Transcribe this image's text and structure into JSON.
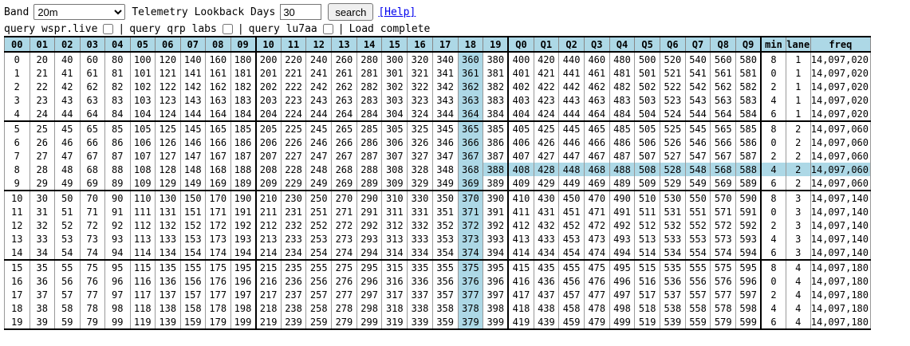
{
  "controls": {
    "band_label": "Band",
    "band_value": "20m",
    "days_label": "Telemetry Lookback Days",
    "days_value": "30",
    "search_label": "search",
    "help_label": "[Help]"
  },
  "queries": {
    "q1": "query wspr.live",
    "q2": "query qrp labs",
    "q3": "query lu7aa",
    "separator": "|",
    "status": "Load complete"
  },
  "colors": {
    "highlight": "#add8e6",
    "header": "#add8e6",
    "link": "#0000ee"
  },
  "grid": {
    "headers": [
      "00",
      "01",
      "02",
      "03",
      "04",
      "05",
      "06",
      "07",
      "08",
      "09",
      "10",
      "11",
      "12",
      "13",
      "14",
      "15",
      "16",
      "17",
      "18",
      "19",
      "Q0",
      "Q1",
      "Q2",
      "Q3",
      "Q4",
      "Q5",
      "Q6",
      "Q7",
      "Q8",
      "Q9",
      "min",
      "lane",
      "freq"
    ],
    "highlight_column": "18",
    "highlight_row": "8",
    "rows": [
      [
        "0",
        "20",
        "40",
        "60",
        "80",
        "100",
        "120",
        "140",
        "160",
        "180",
        "200",
        "220",
        "240",
        "260",
        "280",
        "300",
        "320",
        "340",
        "360",
        "380",
        "400",
        "420",
        "440",
        "460",
        "480",
        "500",
        "520",
        "540",
        "560",
        "580",
        "8",
        "1",
        "14,097,020"
      ],
      [
        "1",
        "21",
        "41",
        "61",
        "81",
        "101",
        "121",
        "141",
        "161",
        "181",
        "201",
        "221",
        "241",
        "261",
        "281",
        "301",
        "321",
        "341",
        "361",
        "381",
        "401",
        "421",
        "441",
        "461",
        "481",
        "501",
        "521",
        "541",
        "561",
        "581",
        "0",
        "1",
        "14,097,020"
      ],
      [
        "2",
        "22",
        "42",
        "62",
        "82",
        "102",
        "122",
        "142",
        "162",
        "182",
        "202",
        "222",
        "242",
        "262",
        "282",
        "302",
        "322",
        "342",
        "362",
        "382",
        "402",
        "422",
        "442",
        "462",
        "482",
        "502",
        "522",
        "542",
        "562",
        "582",
        "2",
        "1",
        "14,097,020"
      ],
      [
        "3",
        "23",
        "43",
        "63",
        "83",
        "103",
        "123",
        "143",
        "163",
        "183",
        "203",
        "223",
        "243",
        "263",
        "283",
        "303",
        "323",
        "343",
        "363",
        "383",
        "403",
        "423",
        "443",
        "463",
        "483",
        "503",
        "523",
        "543",
        "563",
        "583",
        "4",
        "1",
        "14,097,020"
      ],
      [
        "4",
        "24",
        "44",
        "64",
        "84",
        "104",
        "124",
        "144",
        "164",
        "184",
        "204",
        "224",
        "244",
        "264",
        "284",
        "304",
        "324",
        "344",
        "364",
        "384",
        "404",
        "424",
        "444",
        "464",
        "484",
        "504",
        "524",
        "544",
        "564",
        "584",
        "6",
        "1",
        "14,097,020"
      ],
      [
        "5",
        "25",
        "45",
        "65",
        "85",
        "105",
        "125",
        "145",
        "165",
        "185",
        "205",
        "225",
        "245",
        "265",
        "285",
        "305",
        "325",
        "345",
        "365",
        "385",
        "405",
        "425",
        "445",
        "465",
        "485",
        "505",
        "525",
        "545",
        "565",
        "585",
        "8",
        "2",
        "14,097,060"
      ],
      [
        "6",
        "26",
        "46",
        "66",
        "86",
        "106",
        "126",
        "146",
        "166",
        "186",
        "206",
        "226",
        "246",
        "266",
        "286",
        "306",
        "326",
        "346",
        "366",
        "386",
        "406",
        "426",
        "446",
        "466",
        "486",
        "506",
        "526",
        "546",
        "566",
        "586",
        "0",
        "2",
        "14,097,060"
      ],
      [
        "7",
        "27",
        "47",
        "67",
        "87",
        "107",
        "127",
        "147",
        "167",
        "187",
        "207",
        "227",
        "247",
        "267",
        "287",
        "307",
        "327",
        "347",
        "367",
        "387",
        "407",
        "427",
        "447",
        "467",
        "487",
        "507",
        "527",
        "547",
        "567",
        "587",
        "2",
        "2",
        "14,097,060"
      ],
      [
        "8",
        "28",
        "48",
        "68",
        "88",
        "108",
        "128",
        "148",
        "168",
        "188",
        "208",
        "228",
        "248",
        "268",
        "288",
        "308",
        "328",
        "348",
        "368",
        "388",
        "408",
        "428",
        "448",
        "468",
        "488",
        "508",
        "528",
        "548",
        "568",
        "588",
        "4",
        "2",
        "14,097,060"
      ],
      [
        "9",
        "29",
        "49",
        "69",
        "89",
        "109",
        "129",
        "149",
        "169",
        "189",
        "209",
        "229",
        "249",
        "269",
        "289",
        "309",
        "329",
        "349",
        "369",
        "389",
        "409",
        "429",
        "449",
        "469",
        "489",
        "509",
        "529",
        "549",
        "569",
        "589",
        "6",
        "2",
        "14,097,060"
      ],
      [
        "10",
        "30",
        "50",
        "70",
        "90",
        "110",
        "130",
        "150",
        "170",
        "190",
        "210",
        "230",
        "250",
        "270",
        "290",
        "310",
        "330",
        "350",
        "370",
        "390",
        "410",
        "430",
        "450",
        "470",
        "490",
        "510",
        "530",
        "550",
        "570",
        "590",
        "8",
        "3",
        "14,097,140"
      ],
      [
        "11",
        "31",
        "51",
        "71",
        "91",
        "111",
        "131",
        "151",
        "171",
        "191",
        "211",
        "231",
        "251",
        "271",
        "291",
        "311",
        "331",
        "351",
        "371",
        "391",
        "411",
        "431",
        "451",
        "471",
        "491",
        "511",
        "531",
        "551",
        "571",
        "591",
        "0",
        "3",
        "14,097,140"
      ],
      [
        "12",
        "32",
        "52",
        "72",
        "92",
        "112",
        "132",
        "152",
        "172",
        "192",
        "212",
        "232",
        "252",
        "272",
        "292",
        "312",
        "332",
        "352",
        "372",
        "392",
        "412",
        "432",
        "452",
        "472",
        "492",
        "512",
        "532",
        "552",
        "572",
        "592",
        "2",
        "3",
        "14,097,140"
      ],
      [
        "13",
        "33",
        "53",
        "73",
        "93",
        "113",
        "133",
        "153",
        "173",
        "193",
        "213",
        "233",
        "253",
        "273",
        "293",
        "313",
        "333",
        "353",
        "373",
        "393",
        "413",
        "433",
        "453",
        "473",
        "493",
        "513",
        "533",
        "553",
        "573",
        "593",
        "4",
        "3",
        "14,097,140"
      ],
      [
        "14",
        "34",
        "54",
        "74",
        "94",
        "114",
        "134",
        "154",
        "174",
        "194",
        "214",
        "234",
        "254",
        "274",
        "294",
        "314",
        "334",
        "354",
        "374",
        "394",
        "414",
        "434",
        "454",
        "474",
        "494",
        "514",
        "534",
        "554",
        "574",
        "594",
        "6",
        "3",
        "14,097,140"
      ],
      [
        "15",
        "35",
        "55",
        "75",
        "95",
        "115",
        "135",
        "155",
        "175",
        "195",
        "215",
        "235",
        "255",
        "275",
        "295",
        "315",
        "335",
        "355",
        "375",
        "395",
        "415",
        "435",
        "455",
        "475",
        "495",
        "515",
        "535",
        "555",
        "575",
        "595",
        "8",
        "4",
        "14,097,180"
      ],
      [
        "16",
        "36",
        "56",
        "76",
        "96",
        "116",
        "136",
        "156",
        "176",
        "196",
        "216",
        "236",
        "256",
        "276",
        "296",
        "316",
        "336",
        "356",
        "376",
        "396",
        "416",
        "436",
        "456",
        "476",
        "496",
        "516",
        "536",
        "556",
        "576",
        "596",
        "0",
        "4",
        "14,097,180"
      ],
      [
        "17",
        "37",
        "57",
        "77",
        "97",
        "117",
        "137",
        "157",
        "177",
        "197",
        "217",
        "237",
        "257",
        "277",
        "297",
        "317",
        "337",
        "357",
        "377",
        "397",
        "417",
        "437",
        "457",
        "477",
        "497",
        "517",
        "537",
        "557",
        "577",
        "597",
        "2",
        "4",
        "14,097,180"
      ],
      [
        "18",
        "38",
        "58",
        "78",
        "98",
        "118",
        "138",
        "158",
        "178",
        "198",
        "218",
        "238",
        "258",
        "278",
        "298",
        "318",
        "338",
        "358",
        "378",
        "398",
        "418",
        "438",
        "458",
        "478",
        "498",
        "518",
        "538",
        "558",
        "578",
        "598",
        "4",
        "4",
        "14,097,180"
      ],
      [
        "19",
        "39",
        "59",
        "79",
        "99",
        "119",
        "139",
        "159",
        "179",
        "199",
        "219",
        "239",
        "259",
        "279",
        "299",
        "319",
        "339",
        "359",
        "379",
        "399",
        "419",
        "439",
        "459",
        "479",
        "499",
        "519",
        "539",
        "559",
        "579",
        "599",
        "6",
        "4",
        "14,097,180"
      ]
    ]
  }
}
